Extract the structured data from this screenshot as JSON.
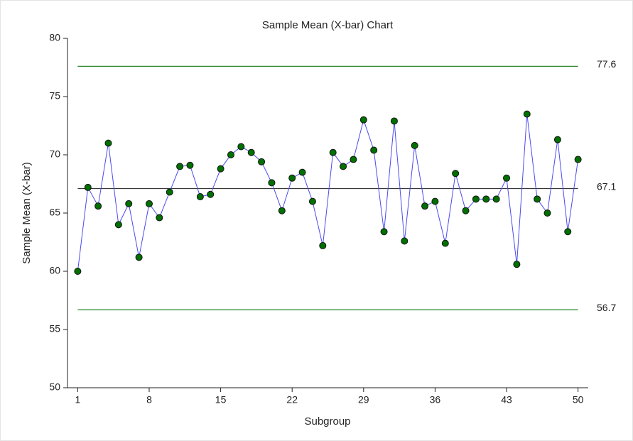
{
  "chart_data": {
    "type": "line",
    "title": "Sample Mean (X-bar) Chart",
    "x_label": "Subgroup",
    "y_label": "Sample Mean (X-bar)",
    "x": [
      1,
      2,
      3,
      4,
      5,
      6,
      7,
      8,
      9,
      10,
      11,
      12,
      13,
      14,
      15,
      16,
      17,
      18,
      19,
      20,
      21,
      22,
      23,
      24,
      25,
      26,
      27,
      28,
      29,
      30,
      31,
      32,
      33,
      34,
      35,
      36,
      37,
      38,
      39,
      40,
      41,
      42,
      43,
      44,
      45,
      46,
      47,
      48,
      49,
      50
    ],
    "series": [
      {
        "color": "#4a4af0",
        "marker_color": "#007000",
        "values": [
          60.0,
          67.2,
          65.6,
          71.0,
          64.0,
          65.8,
          61.2,
          65.8,
          64.6,
          66.8,
          69.0,
          69.1,
          66.4,
          66.6,
          68.8,
          70.0,
          70.7,
          70.2,
          69.4,
          67.6,
          65.2,
          68.0,
          68.5,
          66.0,
          62.2,
          70.2,
          69.0,
          69.6,
          73.0,
          70.4,
          63.4,
          72.9,
          62.6,
          70.8,
          65.6,
          66.0,
          62.4,
          68.4,
          65.2,
          66.2,
          66.2,
          66.2,
          68.0,
          60.6,
          73.5,
          66.2,
          65.0,
          71.3,
          63.4,
          69.6
        ]
      }
    ],
    "reference_lines": [
      {
        "value": 77.6,
        "color": "#2a8a2a"
      },
      {
        "value": 67.1,
        "color": "#333333"
      },
      {
        "value": 56.7,
        "color": "#2a8a2a"
      }
    ],
    "xlim": [
      0,
      51
    ],
    "xticks": [
      1,
      8,
      15,
      22,
      29,
      36,
      43,
      50
    ],
    "ylim": [
      50,
      80
    ],
    "yticks": [
      50,
      55,
      60,
      65,
      70,
      75,
      80
    ],
    "grid": false
  }
}
